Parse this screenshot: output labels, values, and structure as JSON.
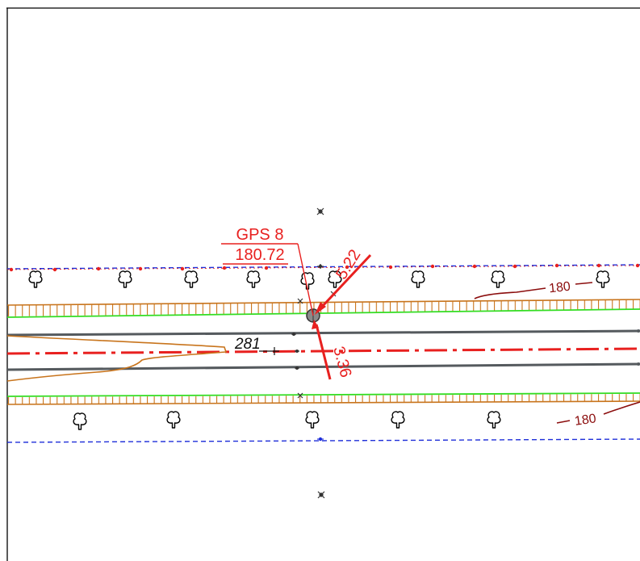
{
  "gps_label": {
    "name": "GPS 8",
    "elevation": "180.72"
  },
  "dimensions": {
    "north_offset": "5.22",
    "south_offset": "3.36"
  },
  "chainage": "281",
  "contours": {
    "north": "180",
    "south": "180"
  },
  "colors": {
    "frame": "#000000",
    "boundary_dashed": "#1f2fd9",
    "centerline": "#e8201f",
    "road_edge": "#555a5e",
    "ditch_slope": "#c8741c",
    "grass_edge": "#33dd22",
    "contour": "#8b0d0d",
    "annotation": "#e8201f",
    "trees": "#000000"
  },
  "icons": {
    "tree": "deciduous-tree-icon",
    "control_point": "survey-control-point-icon",
    "gps_point": "gps-point-icon"
  }
}
